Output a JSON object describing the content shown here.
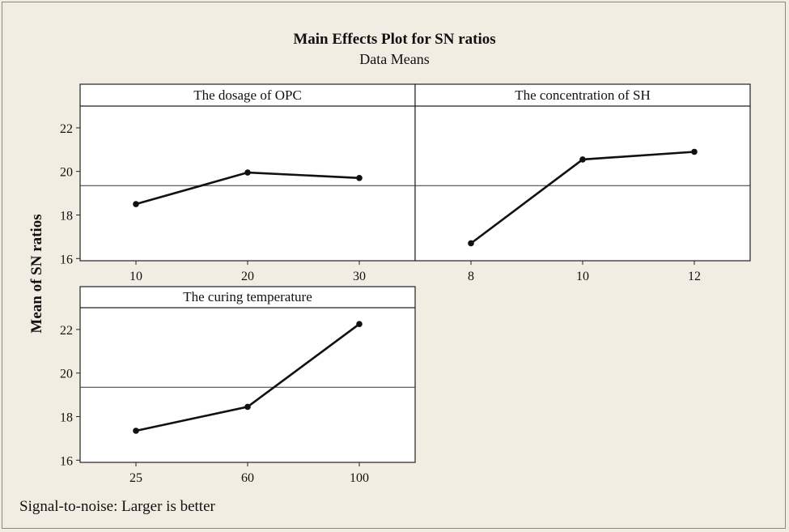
{
  "title": "Main Effects Plot for SN ratios",
  "subtitle": "Data Means",
  "ylabel": "Mean of SN ratios",
  "footer": "Signal-to-noise: Larger is better",
  "chart_data": {
    "type": "line",
    "title": "Main Effects Plot for SN ratios",
    "subtitle": "Data Means",
    "ylabel": "Mean of SN ratios",
    "ylim": [
      15.9,
      23.0
    ],
    "yticks": [
      16,
      18,
      20,
      22
    ],
    "reference_line": 19.35,
    "panels": [
      {
        "name": "The dosage of OPC",
        "categories": [
          "10",
          "20",
          "30"
        ],
        "values": [
          18.5,
          19.95,
          19.7
        ]
      },
      {
        "name": "The concentration of SH",
        "categories": [
          "8",
          "10",
          "12"
        ],
        "values": [
          16.7,
          20.55,
          20.9
        ]
      },
      {
        "name": "The curing temperature",
        "categories": [
          "25",
          "60",
          "100"
        ],
        "values": [
          17.35,
          18.45,
          22.25
        ]
      }
    ]
  }
}
